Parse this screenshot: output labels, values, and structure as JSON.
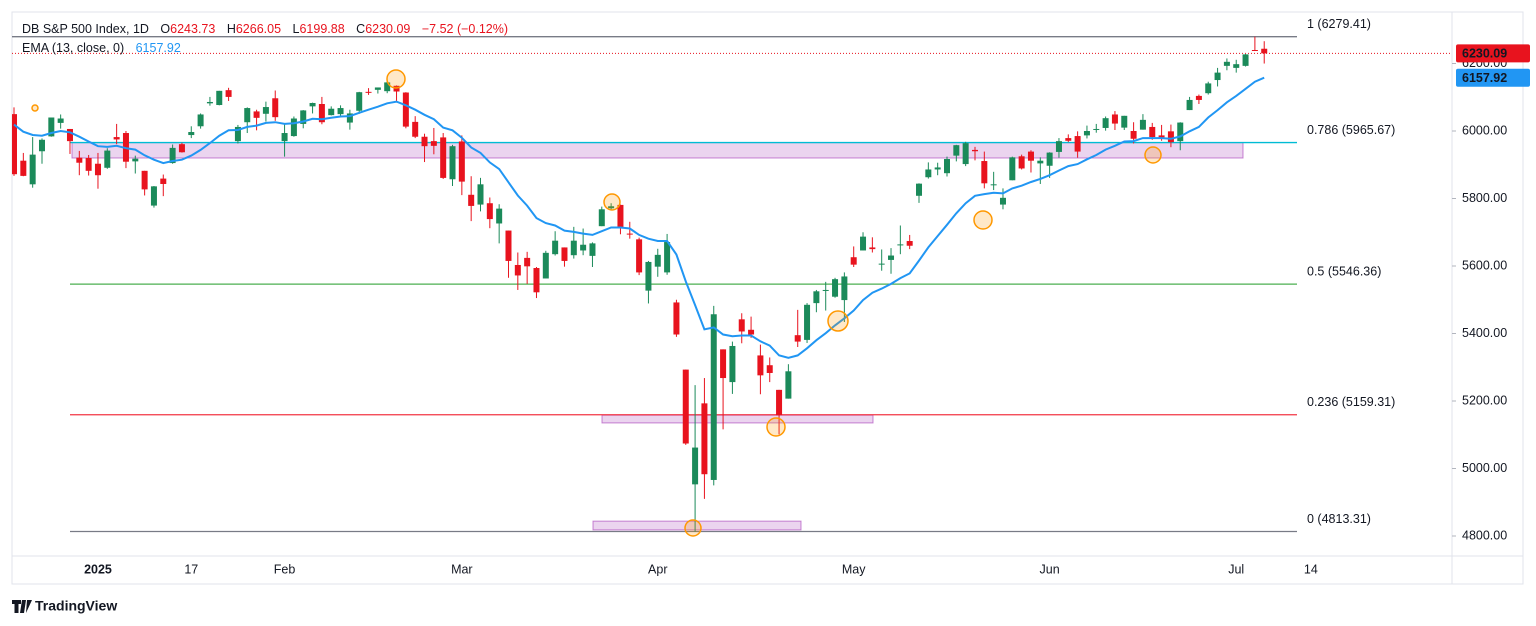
{
  "chart_data": {
    "type": "candlestick",
    "title": "DB S&P 500 Index, 1D",
    "legend": [
      {
        "key": "O",
        "value": 6243.73
      },
      {
        "key": "H",
        "value": 6266.05
      },
      {
        "key": "L",
        "value": 6199.88
      },
      {
        "key": "C",
        "value": 6230.09
      }
    ],
    "change": "−7.52 (−0.12%)",
    "indicator": "EMA (13, close, 0)",
    "brand": "TradingView",
    "colors": {
      "up": "#1b8a5a",
      "down": "#e8131e",
      "ema": "#2196f3"
    },
    "ylim": [
      4740.7,
      6352.6
    ],
    "yticks": [
      {
        "value": 4800,
        "label": "4800.00"
      },
      {
        "value": 5000,
        "label": "5000.00"
      },
      {
        "value": 5200,
        "label": "5200.00"
      },
      {
        "value": 5400,
        "label": "5400.00"
      },
      {
        "value": 5600,
        "label": "5600.00"
      },
      {
        "value": 5800,
        "label": "5800.00"
      },
      {
        "value": 6000,
        "label": "6000.00"
      },
      {
        "value": 6200,
        "label": "6200.00"
      }
    ],
    "categories": [
      null,
      null,
      null,
      null,
      null,
      null,
      null,
      null,
      null,
      "2025",
      null,
      null,
      null,
      null,
      null,
      null,
      null,
      null,
      null,
      "17",
      null,
      null,
      null,
      null,
      null,
      null,
      null,
      null,
      null,
      "Feb",
      null,
      null,
      null,
      null,
      null,
      null,
      null,
      null,
      null,
      null,
      null,
      null,
      null,
      null,
      null,
      null,
      null,
      null,
      "Mar",
      null,
      null,
      null,
      null,
      null,
      null,
      null,
      null,
      null,
      null,
      null,
      null,
      null,
      null,
      null,
      null,
      null,
      null,
      null,
      null,
      "Apr",
      null,
      null,
      null,
      null,
      null,
      null,
      null,
      null,
      null,
      null,
      null,
      null,
      null,
      null,
      null,
      null,
      null,
      null,
      null,
      null,
      "May",
      null,
      null,
      null,
      null,
      null,
      null,
      null,
      null,
      null,
      null,
      null,
      null,
      null,
      null,
      null,
      null,
      null,
      null,
      null,
      null,
      "Jun",
      null,
      null,
      null,
      null,
      null,
      null,
      null,
      null,
      null,
      null,
      null,
      null,
      null,
      null,
      null,
      null,
      null,
      null,
      null,
      "Jul",
      null,
      null,
      null,
      null,
      null,
      null,
      null,
      "14"
    ],
    "ohlc": [
      [
        6050,
        6070,
        5867,
        5872
      ],
      [
        5912,
        5935,
        5866,
        5867
      ],
      [
        5842,
        5982,
        5832,
        5930
      ],
      [
        5940,
        5978,
        5903,
        5974
      ],
      [
        5984,
        6040,
        5983,
        6040
      ],
      [
        6024,
        6049,
        6007,
        6037
      ],
      [
        6006,
        6006,
        5932,
        5970
      ],
      [
        5921,
        5941,
        5869,
        5906
      ],
      [
        5920,
        5929,
        5868,
        5882
      ],
      [
        5903,
        5935,
        5829,
        5869
      ],
      [
        5891,
        5949,
        5888,
        5942
      ],
      [
        5982,
        6021,
        5961,
        5975
      ],
      [
        5994,
        6000,
        5890,
        5909
      ],
      [
        5910,
        5927,
        5874,
        5918
      ],
      [
        5882,
        5882,
        5809,
        5827
      ],
      [
        5779,
        5837,
        5773,
        5836
      ],
      [
        5859,
        5871,
        5807,
        5843
      ],
      [
        5905,
        5960,
        5903,
        5950
      ],
      [
        5961,
        5965,
        5936,
        5937
      ],
      [
        5988,
        6014,
        5979,
        5997
      ],
      [
        6014,
        6052,
        6007,
        6049
      ],
      [
        6082,
        6101,
        6075,
        6086
      ],
      [
        6077,
        6119,
        6076,
        6119
      ],
      [
        6121,
        6128,
        6089,
        6101
      ],
      [
        5970,
        6018,
        5963,
        6012
      ],
      [
        6026,
        6070,
        5994,
        6068
      ],
      [
        6058,
        6063,
        6002,
        6039
      ],
      [
        6051,
        6087,
        6028,
        6071
      ],
      [
        6097,
        6120,
        6030,
        6041
      ],
      [
        5970,
        6023,
        5924,
        5994
      ],
      [
        5985,
        6043,
        5983,
        6037
      ],
      [
        6021,
        6062,
        6008,
        6061
      ],
      [
        6073,
        6084,
        6052,
        6083
      ],
      [
        6080,
        6101,
        6020,
        6026
      ],
      [
        6047,
        6073,
        6046,
        6066
      ],
      [
        6050,
        6076,
        6043,
        6068
      ],
      [
        6025,
        6063,
        6004,
        6052
      ],
      [
        6060,
        6116,
        6051,
        6115
      ],
      [
        6116,
        6127,
        6107,
        6115
      ],
      [
        6122,
        6129,
        6111,
        6129
      ],
      [
        6118,
        6147,
        6112,
        6144
      ],
      [
        6134,
        6135,
        6088,
        6117
      ],
      [
        6114,
        6115,
        6008,
        6013
      ],
      [
        6027,
        6044,
        5979,
        5983
      ],
      [
        5983,
        5992,
        5908,
        5955
      ],
      [
        5970,
        6009,
        5931,
        5956
      ],
      [
        5981,
        5994,
        5858,
        5861
      ],
      [
        5857,
        5959,
        5837,
        5955
      ],
      [
        5969,
        5987,
        5810,
        5850
      ],
      [
        5811,
        5866,
        5733,
        5778
      ],
      [
        5782,
        5861,
        5762,
        5842
      ],
      [
        5786,
        5803,
        5712,
        5739
      ],
      [
        5726,
        5783,
        5667,
        5770
      ],
      [
        5705,
        5705,
        5565,
        5615
      ],
      [
        5603,
        5640,
        5529,
        5572
      ],
      [
        5624,
        5642,
        5547,
        5599
      ],
      [
        5594,
        5597,
        5505,
        5522
      ],
      [
        5563,
        5645,
        5563,
        5639
      ],
      [
        5635,
        5703,
        5631,
        5675
      ],
      [
        5655,
        5655,
        5598,
        5615
      ],
      [
        5632,
        5716,
        5622,
        5675
      ],
      [
        5646,
        5711,
        5632,
        5663
      ],
      [
        5630,
        5670,
        5597,
        5667
      ],
      [
        5718,
        5776,
        5718,
        5768
      ],
      [
        5771,
        5786,
        5765,
        5777
      ],
      [
        5781,
        5782,
        5694,
        5712
      ],
      [
        5696,
        5731,
        5681,
        5693
      ],
      [
        5679,
        5684,
        5573,
        5581
      ],
      [
        5527,
        5615,
        5489,
        5612
      ],
      [
        5598,
        5651,
        5568,
        5633
      ],
      [
        5581,
        5695,
        5574,
        5671
      ],
      [
        5492,
        5500,
        5390,
        5397
      ],
      [
        5293,
        5293,
        5070,
        5074
      ],
      [
        4953,
        5247,
        4813,
        5062
      ],
      [
        5193,
        5268,
        4910,
        4983
      ],
      [
        4966,
        5482,
        4950,
        5457
      ],
      [
        5353,
        5353,
        5116,
        5268
      ],
      [
        5256,
        5376,
        5221,
        5363
      ],
      [
        5442,
        5460,
        5371,
        5406
      ],
      [
        5411,
        5450,
        5387,
        5397
      ],
      [
        5335,
        5367,
        5220,
        5276
      ],
      [
        5306,
        5329,
        5256,
        5283
      ],
      [
        5233,
        5233,
        5101,
        5158
      ],
      [
        5207,
        5309,
        5207,
        5288
      ],
      [
        5395,
        5470,
        5360,
        5376
      ],
      [
        5381,
        5490,
        5372,
        5485
      ],
      [
        5490,
        5529,
        5463,
        5525
      ],
      [
        5529,
        5553,
        5468,
        5529
      ],
      [
        5509,
        5565,
        5506,
        5561
      ],
      [
        5499,
        5581,
        5434,
        5569
      ],
      [
        5626,
        5658,
        5597,
        5604
      ],
      [
        5646,
        5700,
        5646,
        5687
      ],
      [
        5655,
        5685,
        5640,
        5650
      ],
      [
        5606,
        5649,
        5586,
        5607
      ],
      [
        5618,
        5653,
        5577,
        5631
      ],
      [
        5663,
        5720,
        5635,
        5664
      ],
      [
        5674,
        5692,
        5650,
        5660
      ],
      [
        5808,
        5845,
        5787,
        5844
      ],
      [
        5863,
        5907,
        5859,
        5886
      ],
      [
        5886,
        5906,
        5869,
        5892
      ],
      [
        5875,
        5924,
        5865,
        5917
      ],
      [
        5927,
        5959,
        5910,
        5958
      ],
      [
        5902,
        5968,
        5896,
        5964
      ],
      [
        5944,
        5953,
        5913,
        5940
      ],
      [
        5911,
        5939,
        5830,
        5845
      ],
      [
        5841,
        5879,
        5825,
        5842
      ],
      [
        5782,
        5830,
        5768,
        5802
      ],
      [
        5854,
        5924,
        5854,
        5922
      ],
      [
        5925,
        5930,
        5886,
        5889
      ],
      [
        5939,
        5943,
        5877,
        5912
      ],
      [
        5904,
        5922,
        5843,
        5912
      ],
      [
        5897,
        5937,
        5861,
        5936
      ],
      [
        5938,
        5979,
        5921,
        5970
      ],
      [
        5979,
        5990,
        5967,
        5971
      ],
      [
        5985,
        5999,
        5921,
        5939
      ],
      [
        5987,
        6016,
        5978,
        6000
      ],
      [
        6005,
        6021,
        5995,
        6006
      ],
      [
        6009,
        6043,
        6001,
        6038
      ],
      [
        6049,
        6059,
        6003,
        6022
      ],
      [
        6010,
        6045,
        6003,
        6045
      ],
      [
        6000,
        6026,
        5963,
        5977
      ],
      [
        6004,
        6050,
        6004,
        6033
      ],
      [
        6012,
        6024,
        5974,
        5982
      ],
      [
        5987,
        6018,
        5971,
        5981
      ],
      [
        5999,
        6019,
        5952,
        5967
      ],
      [
        5970,
        6026,
        5943,
        6025
      ],
      [
        6062,
        6101,
        6062,
        6092
      ],
      [
        6104,
        6108,
        6080,
        6092
      ],
      [
        6112,
        6146,
        6108,
        6141
      ],
      [
        6151,
        6187,
        6132,
        6173
      ],
      [
        6193,
        6215,
        6180,
        6205
      ],
      [
        6187,
        6211,
        6173,
        6198
      ],
      [
        6193,
        6228,
        6191,
        6227
      ],
      [
        6240,
        6279.41,
        6238,
        6237.61
      ],
      [
        6243.73,
        6266.05,
        6199.88,
        6230.09
      ],
      null,
      null,
      null,
      null,
      null
    ],
    "ema": [
      6019,
      5998,
      5988,
      5986,
      5994,
      6000,
      5996,
      5983,
      5969,
      5955,
      5953,
      5956,
      5949,
      5945,
      5928,
      5915,
      5905,
      5911,
      5915,
      5927,
      5944,
      5964,
      5986,
      6002,
      6003,
      6012,
      6016,
      6024,
      6026,
      6021,
      6023,
      6028,
      6036,
      6035,
      6039,
      6043,
      6044,
      6054,
      6063,
      6072,
      6082,
      6087,
      6076,
      6063,
      6048,
      6035,
      6010,
      6002,
      5980,
      5951,
      5935,
      5907,
      5887,
      5848,
      5809,
      5779,
      5742,
      5727,
      5720,
      5705,
      5701,
      5696,
      5692,
      5703,
      5714,
      5714,
      5711,
      5692,
      5681,
      5674,
      5674,
      5634,
      5554,
      5484,
      5412,
      5418,
      5397,
      5392,
      5394,
      5394,
      5377,
      5364,
      5335,
      5328,
      5335,
      5356,
      5380,
      5401,
      5424,
      5445,
      5468,
      5499,
      5521,
      5533,
      5547,
      5564,
      5578,
      5616,
      5655,
      5689,
      5722,
      5756,
      5786,
      5808,
      5813,
      5817,
      5815,
      5830,
      5838,
      5849,
      5858,
      5869,
      5883,
      5896,
      5902,
      5916,
      5929,
      5945,
      5956,
      5969,
      5970,
      5979,
      5979,
      5979,
      5977,
      5984,
      5999,
      6012,
      6040,
      6062,
      6085,
      6104,
      6125,
      6146,
      6157.92,
      null,
      null,
      null,
      null,
      null
    ],
    "fib_levels": [
      {
        "label": "1 (6279.41)",
        "value": 6279.41,
        "color": "#787b86"
      },
      {
        "label": "0.786 (5965.67)",
        "value": 5965.67,
        "color": "#00bcd4"
      },
      {
        "label": "0.5 (5546.36)",
        "value": 5546.36,
        "color": "#4caf50"
      },
      {
        "label": "0.236 (5159.31)",
        "value": 5159.31,
        "color": "#f23645"
      },
      {
        "label": "0 (4813.31)",
        "value": 4813.31,
        "color": "#787b86"
      }
    ],
    "zones": [
      {
        "low": 5920,
        "high": 5965.67
      },
      {
        "low": 5135,
        "high": 5158
      },
      {
        "low": 4818,
        "high": 4844
      }
    ]
  }
}
